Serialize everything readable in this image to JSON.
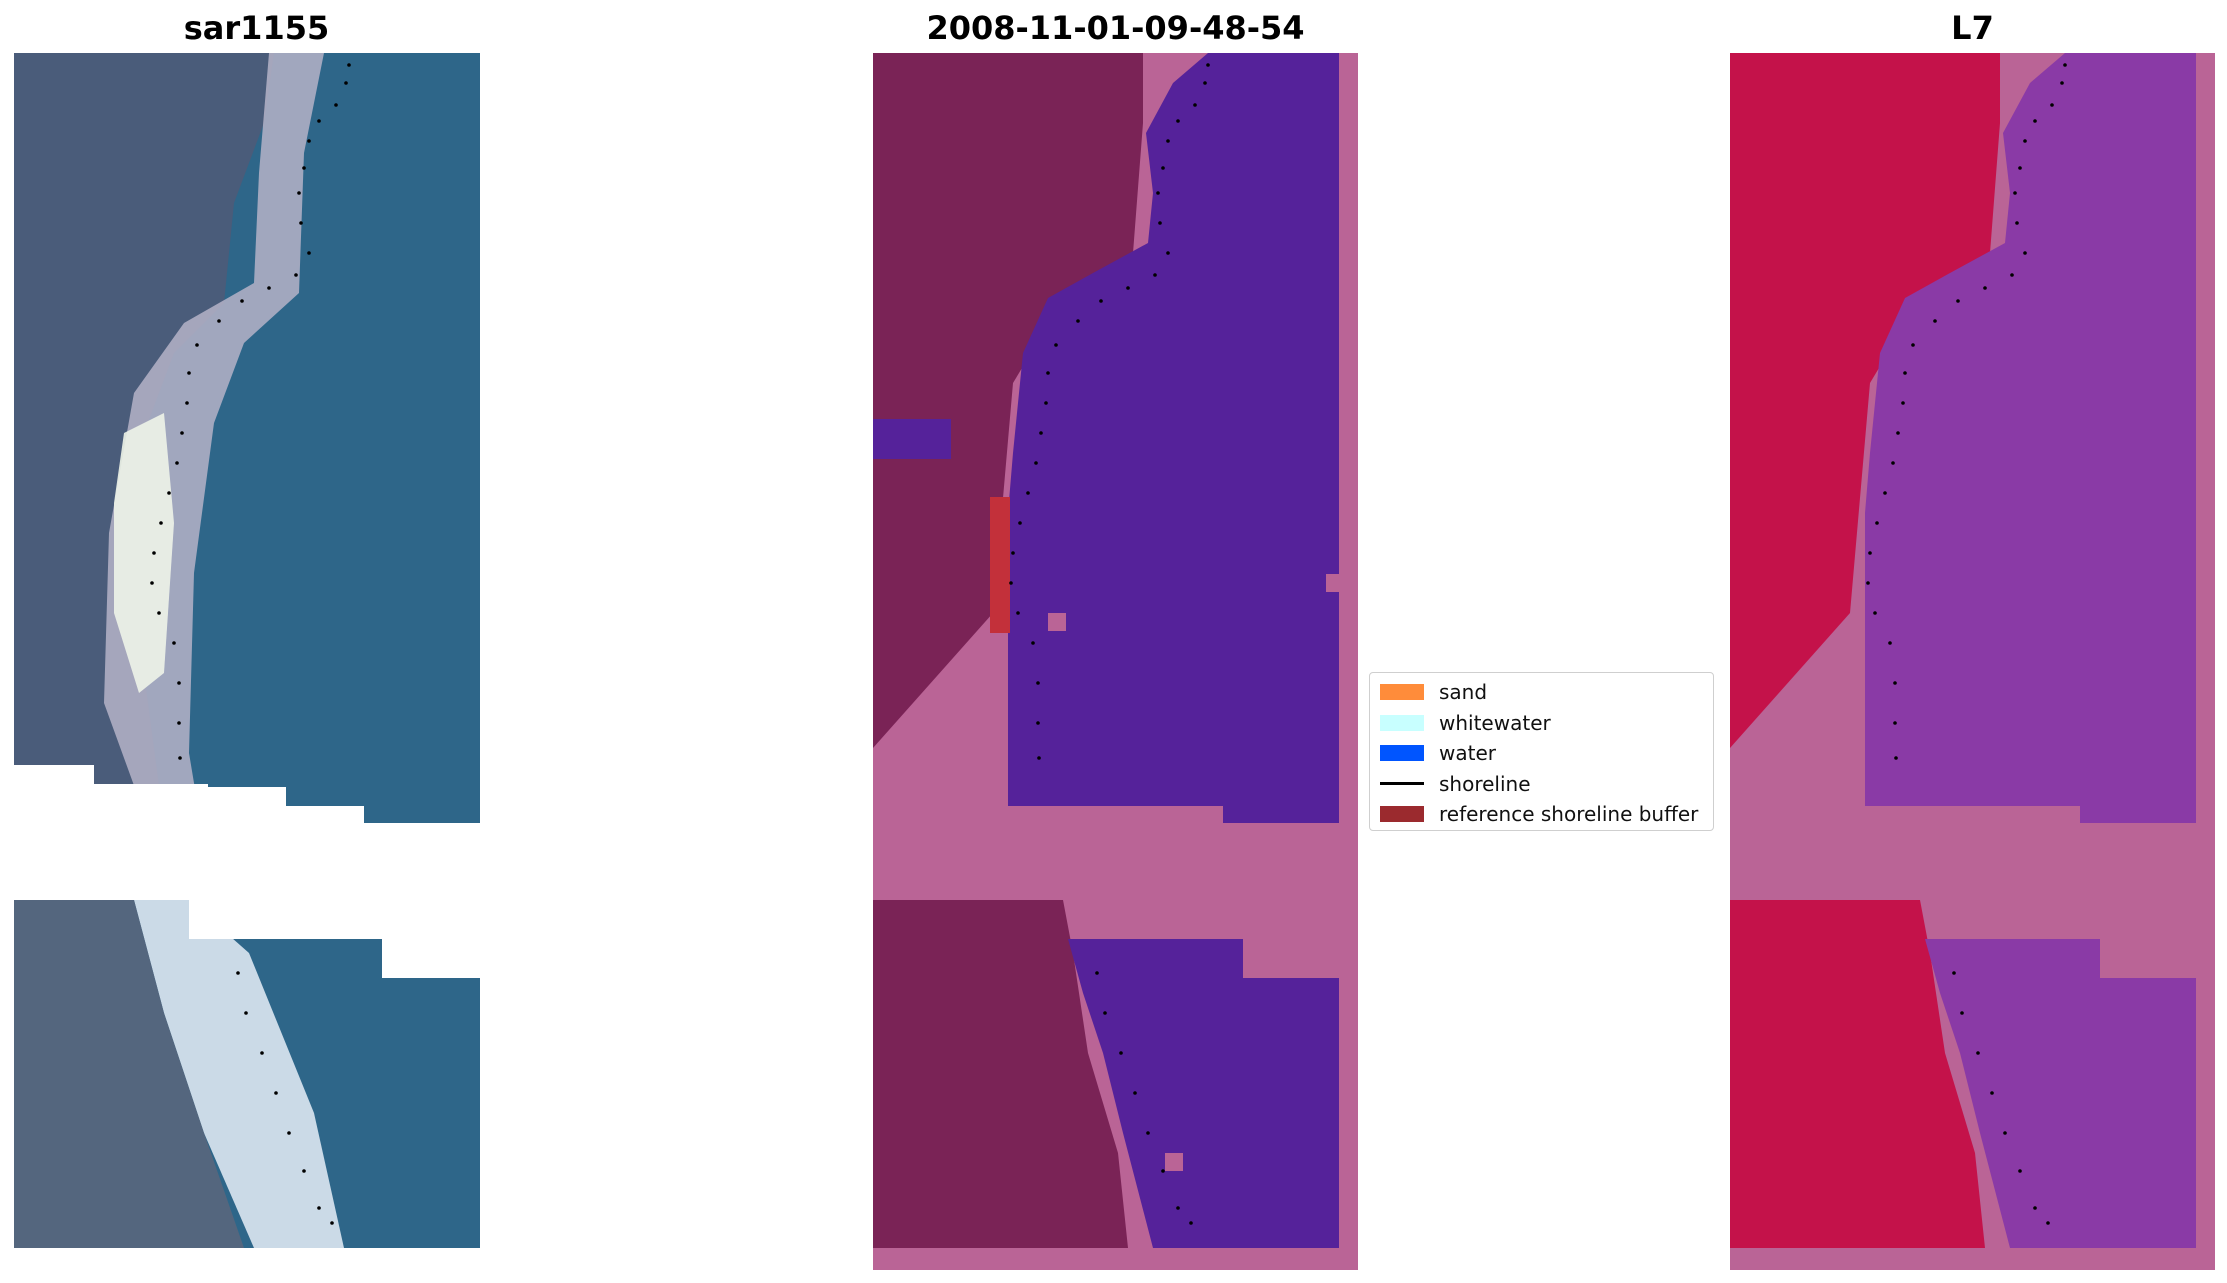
{
  "panels": [
    {
      "title": "sar1155"
    },
    {
      "title": "2008-11-01-09-48-54"
    },
    {
      "title": "L7"
    }
  ],
  "legend": {
    "items": [
      {
        "label": "sand",
        "kind": "patch",
        "color": "#ff8c3a"
      },
      {
        "label": "whitewater",
        "kind": "patch",
        "color": "#c8ffff"
      },
      {
        "label": "water",
        "kind": "patch",
        "color": "#0055ff"
      },
      {
        "label": "shoreline",
        "kind": "line",
        "color": "#000000"
      },
      {
        "label": "reference shoreline buffer",
        "kind": "patch",
        "color": "#9b2a2e"
      }
    ]
  },
  "colors": {
    "classified_land": "#7a2356",
    "classified_water": "#55229a",
    "classified_nodata": "#ba6496",
    "index_land": "#c4124a",
    "index_water": "#8a3aa6",
    "index_nodata": "#ba6496",
    "buffer": "#c3303a"
  }
}
